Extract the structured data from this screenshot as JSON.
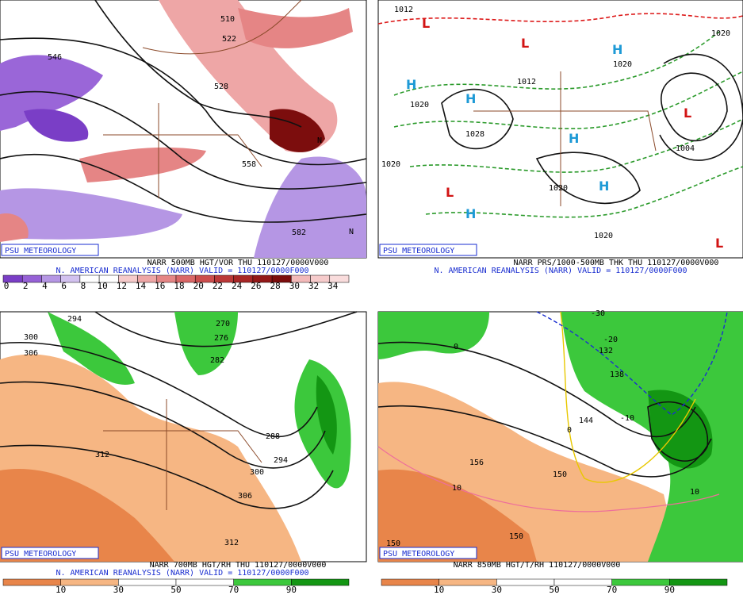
{
  "panels": [
    {
      "badge": "PSU METEOROLOGY",
      "caption": {
        "line1": "NARR 500MB HGT/VOR THU 110127/0000V000",
        "line2": "N. AMERICAN REANALYSIS (NARR) VALID = 110127/0000F000"
      },
      "colorbar": {
        "labels": [
          "0",
          "2",
          "4",
          "6",
          "8",
          "10",
          "12",
          "14",
          "16",
          "18",
          "20",
          "22",
          "24",
          "26",
          "28",
          "30",
          "32",
          "34"
        ],
        "colors": [
          "#7a3ec6",
          "#9661d6",
          "#b596e4",
          "#d2c1ef",
          "#ffffff",
          "#ffffff",
          "#f6caca",
          "#eea6a6",
          "#e58585",
          "#da6767",
          "#cc4d4d",
          "#bb3838",
          "#a82626",
          "#931818",
          "#7c0d0d",
          "#f3b9b9",
          "#f6cbcb",
          "#f9dcdc"
        ]
      },
      "labels": [
        "510",
        "522",
        "528",
        "546",
        "558",
        "582",
        "N",
        "N"
      ]
    },
    {
      "badge": "PSU METEOROLOGY",
      "caption": {
        "line1": "NARR PRS/1000-500MB THK THU 110127/0000V000",
        "line2": "N. AMERICAN REANALYSIS (NARR) VALID = 110127/0000F000"
      },
      "labels": [
        "1012",
        "1020",
        "1020",
        "1028",
        "1020",
        "1020",
        "1020",
        "1012",
        "1004",
        "1020",
        "H",
        "H",
        "H",
        "H",
        "H",
        "H",
        "L",
        "L",
        "L",
        "L",
        "L"
      ]
    },
    {
      "badge": "PSU METEOROLOGY",
      "caption": {
        "line1": "NARR 700MB HGT/RH THU 110127/0000V000",
        "line2": "N. AMERICAN REANALYSIS (NARR) VALID = 110127/0000F000"
      },
      "colorbar": {
        "labels": [
          "10",
          "30",
          "50",
          "70",
          "90"
        ],
        "colors": [
          "#e8854a",
          "#f6b683",
          "#ffffff",
          "#ffffff",
          "#3cc83c",
          "#139613"
        ]
      },
      "labels": [
        "294",
        "300",
        "306",
        "270",
        "276",
        "282",
        "288",
        "294",
        "300",
        "306",
        "312",
        "312"
      ]
    },
    {
      "badge": "PSU METEOROLOGY",
      "caption": {
        "line1": "NARR 850MB HGT/T/RH 110127/0000V000"
      },
      "colorbar": {
        "labels": [
          "10",
          "30",
          "50",
          "70",
          "90"
        ],
        "colors": [
          "#e8854a",
          "#f6b683",
          "#ffffff",
          "#ffffff",
          "#3cc83c",
          "#139613"
        ]
      },
      "labels": [
        "-30",
        "-20",
        "-10",
        "0",
        "0",
        "10",
        "10",
        "132",
        "138",
        "144",
        "150",
        "150",
        "156",
        "150"
      ]
    }
  ]
}
